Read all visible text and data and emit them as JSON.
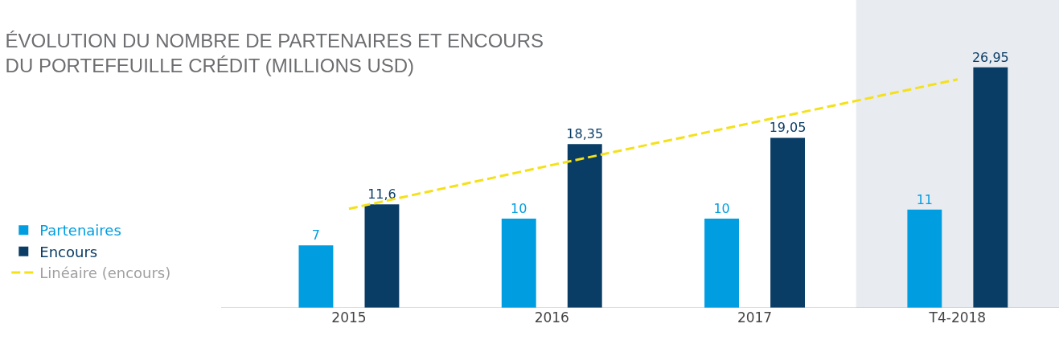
{
  "chart_data": {
    "type": "bar",
    "title": "ÉVOLUTION DU NOMBRE DE PARTENAIRES ET ENCOURS\nDU PORTEFEUILLE CRÉDIT (MILLIONS USD)",
    "categories": [
      "2015",
      "2016",
      "2017",
      "T4-2018"
    ],
    "series": [
      {
        "name": "Partenaires",
        "color": "#009ee0",
        "values": [
          7,
          10,
          10,
          11
        ],
        "value_labels": [
          "7",
          "10",
          "10",
          "11"
        ]
      },
      {
        "name": "Encours",
        "color": "#0a3d66",
        "values": [
          11.6,
          18.35,
          19.05,
          26.95
        ],
        "value_labels": [
          "11,6",
          "18,35",
          "19,05",
          "26,95"
        ]
      },
      {
        "name": "Linéaire (encours)",
        "type": "line",
        "color": "#f5e11a",
        "line_style": "dashed",
        "values": [
          11.1,
          16,
          20.8,
          25.6
        ]
      }
    ],
    "bands": [
      {
        "axis": "x",
        "from": "T4-2018",
        "to": "T4-2018",
        "color": "#e8ebf0"
      }
    ],
    "legend": "bottom left",
    "grid": false
  }
}
